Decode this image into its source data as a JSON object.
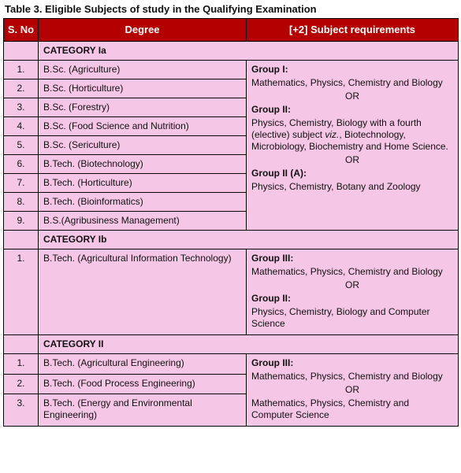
{
  "caption": "Table 3. Eligible Subjects of study in the Qualifying Examination",
  "head": {
    "sno": "S. No",
    "degree": "Degree",
    "req": "[+2] Subject requirements"
  },
  "cat1a": {
    "label": "CATEGORY Ia",
    "rows": [
      {
        "n": "1.",
        "deg": "B.Sc. (Agriculture)"
      },
      {
        "n": "2.",
        "deg": "B.Sc. (Horticulture)"
      },
      {
        "n": "3.",
        "deg": "B.Sc. (Forestry)"
      },
      {
        "n": "4.",
        "deg": "B.Sc. (Food Science and Nutrition)"
      },
      {
        "n": "5.",
        "deg": "B.Sc. (Sericulture)"
      },
      {
        "n": "6.",
        "deg": "B.Tech. (Biotechnology)"
      },
      {
        "n": "7.",
        "deg": "B.Tech. (Horticulture)"
      },
      {
        "n": "8.",
        "deg": "B.Tech. (Bioinformatics)"
      },
      {
        "n": "9.",
        "deg": "B.S.(Agribusiness Management)"
      }
    ],
    "req": {
      "g1_title": "Group I:",
      "g1_body": "Mathematics, Physics, Chemistry and Biology",
      "or1": "OR",
      "g2_title": "Group II:",
      "g2_body_pre": "Physics, Chemistry, Biology with a fourth (elective) subject ",
      "g2_viz": "viz.",
      "g2_body_post": ", Biotechnology, Microbiology, Biochemistry and Home Science.",
      "or2": "OR",
      "g2a_title": "Group II (A):",
      "g2a_body": "Physics, Chemistry, Botany and Zoology"
    }
  },
  "cat1b": {
    "label": "CATEGORY Ib",
    "rows": [
      {
        "n": "1.",
        "deg": "B.Tech. (Agricultural Information Technology)"
      }
    ],
    "req": {
      "g3_title": "Group III:",
      "g3_body": "Mathematics, Physics, Chemistry and Biology",
      "or": "OR",
      "g2_title": "Group II:",
      "g2_body": "Physics, Chemistry, Biology and Computer Science"
    }
  },
  "cat2": {
    "label": "CATEGORY II",
    "rows": [
      {
        "n": "1.",
        "deg": "B.Tech. (Agricultural Engineering)"
      },
      {
        "n": "2.",
        "deg": "B.Tech. (Food Process Engineering)"
      },
      {
        "n": "3.",
        "deg": "B.Tech. (Energy and Environmental Engineering)"
      }
    ],
    "req": {
      "g3_title": "Group III:",
      "g3_body": "Mathematics, Physics, Chemistry and Biology",
      "or": "OR",
      "alt_body": "Mathematics, Physics, Chemistry and Computer Science"
    }
  }
}
